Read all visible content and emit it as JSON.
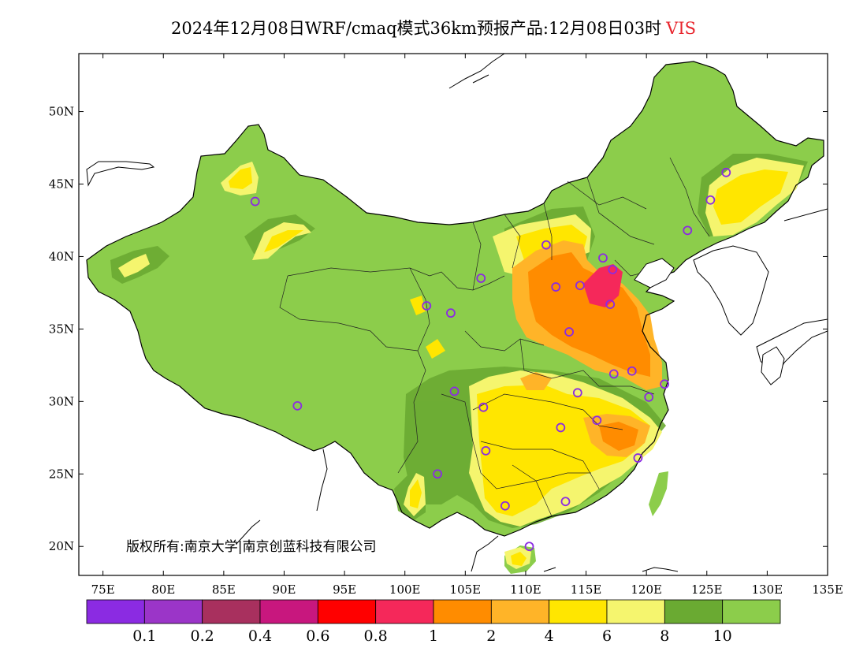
{
  "title": {
    "text": "2024年12月08日WRF/cmaq模式36km预报产品:12月08日03时",
    "variable": "VIS",
    "variable_color": "#e8242c"
  },
  "copyright": "版权所有:南京大学|南京创蓝科技有限公司",
  "chart_data": {
    "type": "heatmap",
    "title": "2024年12月08日WRF/cmaq模式36km预报产品:12月08日03时 VIS",
    "xlabel": "",
    "ylabel": "",
    "xlim": [
      73,
      135
    ],
    "ylim": [
      18,
      54
    ],
    "x_ticks": [
      {
        "value": 75,
        "label": "75E"
      },
      {
        "value": 80,
        "label": "80E"
      },
      {
        "value": 85,
        "label": "85E"
      },
      {
        "value": 90,
        "label": "90E"
      },
      {
        "value": 95,
        "label": "95E"
      },
      {
        "value": 100,
        "label": "100E"
      },
      {
        "value": 105,
        "label": "105E"
      },
      {
        "value": 110,
        "label": "110E"
      },
      {
        "value": 115,
        "label": "115E"
      },
      {
        "value": 120,
        "label": "120E"
      },
      {
        "value": 125,
        "label": "125E"
      },
      {
        "value": 130,
        "label": "130E"
      },
      {
        "value": 135,
        "label": "135E"
      }
    ],
    "y_ticks": [
      {
        "value": 20,
        "label": "20N"
      },
      {
        "value": 25,
        "label": "25N"
      },
      {
        "value": 30,
        "label": "30N"
      },
      {
        "value": 35,
        "label": "35N"
      },
      {
        "value": 40,
        "label": "40N"
      },
      {
        "value": 45,
        "label": "45N"
      },
      {
        "value": 50,
        "label": "50N"
      }
    ],
    "colorbar": {
      "colors": [
        "#8b2be2",
        "#9b35c8",
        "#a8305e",
        "#c8177e",
        "#ff0000",
        "#f5285a",
        "#ff8c00",
        "#ffb428",
        "#ffe600",
        "#f5f56e",
        "#6aaa32",
        "#8ccd4b"
      ],
      "labels": [
        "0.1",
        "0.2",
        "0.4",
        "0.6",
        "0.8",
        "1",
        "2",
        "4",
        "6",
        "8",
        "10"
      ]
    },
    "stations": [
      [
        87.6,
        43.8
      ],
      [
        91.1,
        29.7
      ],
      [
        101.8,
        36.6
      ],
      [
        103.8,
        36.1
      ],
      [
        106.3,
        38.5
      ],
      [
        104.1,
        30.7
      ],
      [
        106.5,
        29.6
      ],
      [
        106.7,
        26.6
      ],
      [
        102.7,
        25.0
      ],
      [
        108.3,
        22.8
      ],
      [
        110.3,
        20.0
      ],
      [
        111.7,
        40.8
      ],
      [
        112.5,
        37.9
      ],
      [
        114.5,
        38.0
      ],
      [
        113.6,
        34.8
      ],
      [
        114.3,
        30.6
      ],
      [
        112.9,
        28.2
      ],
      [
        113.3,
        23.1
      ],
      [
        115.9,
        28.7
      ],
      [
        116.4,
        39.9
      ],
      [
        117.2,
        39.1
      ],
      [
        117.0,
        36.7
      ],
      [
        117.3,
        31.9
      ],
      [
        118.8,
        32.1
      ],
      [
        120.2,
        30.3
      ],
      [
        121.5,
        31.2
      ],
      [
        119.3,
        26.1
      ],
      [
        123.4,
        41.8
      ],
      [
        125.3,
        43.9
      ],
      [
        126.6,
        45.8
      ]
    ]
  }
}
